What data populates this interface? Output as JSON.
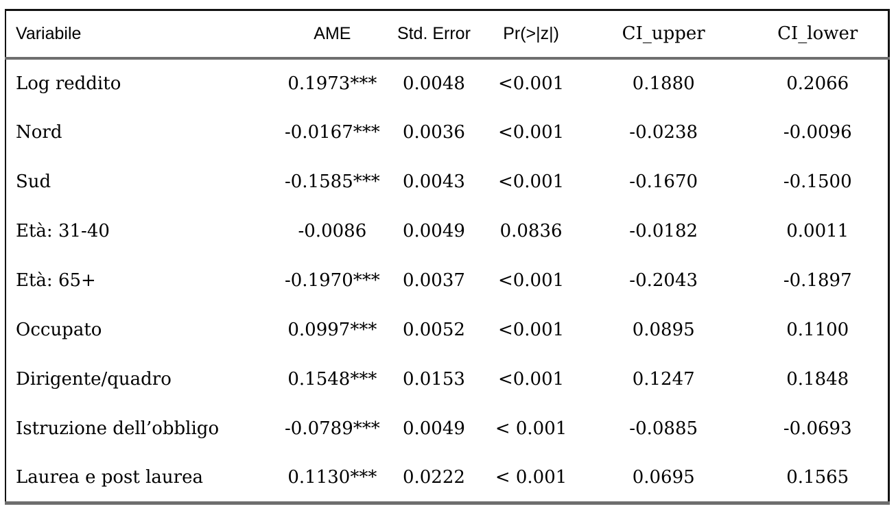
{
  "table": {
    "columns": [
      {
        "label": "Variabile"
      },
      {
        "label": "AME"
      },
      {
        "label": "Std. Error"
      },
      {
        "label": "Pr(>|z|)"
      },
      {
        "label": "CI_upper"
      },
      {
        "label": "CI_lower"
      }
    ],
    "rows": [
      [
        "Log reddito",
        "0.1973***",
        "0.0048",
        "<0.001",
        "0.1880",
        "0.2066"
      ],
      [
        "Nord",
        "-0.0167***",
        "0.0036",
        "<0.001",
        "-0.0238",
        "-0.0096"
      ],
      [
        "Sud",
        "-0.1585***",
        "0.0043",
        "<0.001",
        "-0.1670",
        "-0.1500"
      ],
      [
        "Età: 31-40",
        "-0.0086",
        "0.0049",
        "0.0836",
        "-0.0182",
        "0.0011"
      ],
      [
        "Età: 65+",
        "-0.1970***",
        "0.0037",
        "<0.001",
        "-0.2043",
        "-0.1897"
      ],
      [
        "Occupato",
        "0.0997***",
        "0.0052",
        "<0.001",
        "0.0895",
        "0.1100"
      ],
      [
        "Dirigente/quadro",
        "0.1548***",
        "0.0153",
        "<0.001",
        "0.1247",
        "0.1848"
      ],
      [
        "Istruzione dell’obbligo",
        "-0.0789***",
        "0.0049",
        "< 0.001",
        "-0.0885",
        "-0.0693"
      ],
      [
        "Laurea e post laurea",
        "0.1130***",
        "0.0222",
        "< 0.001",
        "0.0695",
        "0.1565"
      ]
    ],
    "colors": {
      "border_black": "#121212",
      "border_gray": "#6e6e6e",
      "text": "#000000",
      "background": "#ffffff"
    }
  }
}
